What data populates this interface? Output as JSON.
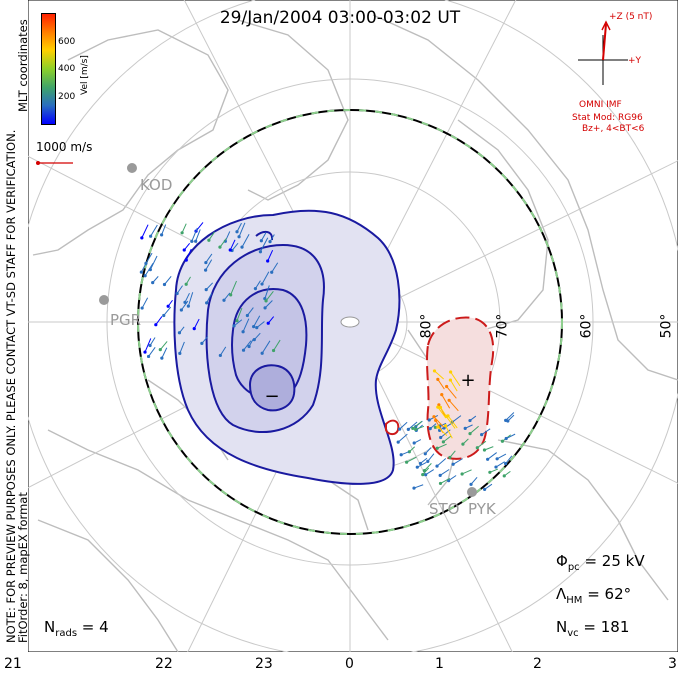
{
  "title": "29/Jan/2004 03:00-03:02 UT",
  "note_line1": "NOTE: FOR PREVIEW PURPOSES ONLY. PLEASE CONTACT VT-SD STAFF FOR VERIFICATION.",
  "note_line2": "FitOrder: 8, mapEX format",
  "coordinates": "MLT coordinates",
  "colorbar": {
    "label": "Vel [m/s]",
    "ticks": [
      "600",
      "400",
      "200"
    ],
    "colors": [
      "#0000ff",
      "#2a6fbf",
      "#3fa36a",
      "#8cd02a",
      "#ffd000",
      "#ff8000",
      "#ff2000"
    ]
  },
  "scale_vector": "1000 m/s",
  "imf": {
    "z_label": "+Z (5 nT)",
    "y_label": "+Y",
    "source": "OMNI IMF",
    "model": "Stat Mod: RG96",
    "condition": "Bz+, 4<BT<6"
  },
  "stats": {
    "phi_pc": "Φ",
    "phi_pc_sub": "pc",
    "phi_pc_value": " = 25 kV",
    "lambda_hm": "Λ",
    "lambda_hm_sub": "HM",
    "lambda_hm_value": " = 62°",
    "n_vc": "N",
    "n_vc_sub": "vc",
    "n_vc_value": " = 181",
    "n_rads": "N",
    "n_rads_sub": "rads",
    "n_rads_value": " = 4"
  },
  "mlt_ticks": [
    "21",
    "22",
    "23",
    "0",
    "1",
    "2",
    "3"
  ],
  "latitude_labels": [
    "80°",
    "70°",
    "60°",
    "50°"
  ],
  "stations": [
    "KOD",
    "PGR",
    "STO",
    "PYK"
  ],
  "contour_signs": [
    "−",
    "+"
  ],
  "colors": {
    "negative_cell": "#1a1aa0",
    "positive_cell": "#cc1a1a",
    "boundary": "#000000",
    "boundary_dash": "#8ed08e",
    "imf": "#d40000",
    "coastline": "#b8b8b8"
  }
}
